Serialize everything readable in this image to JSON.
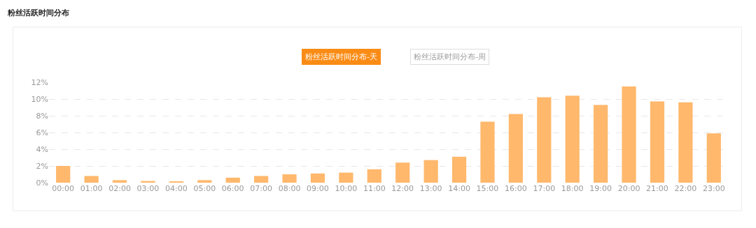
{
  "chart_data": {
    "type": "bar",
    "title": "粉丝活跃时间分布",
    "annotations": [
      "粉丝活跃时间分布-天",
      "粉丝活跃时间分布-周"
    ],
    "categories": [
      "00:00",
      "01:00",
      "02:00",
      "03:00",
      "04:00",
      "05:00",
      "06:00",
      "07:00",
      "08:00",
      "09:00",
      "10:00",
      "11:00",
      "12:00",
      "13:00",
      "14:00",
      "15:00",
      "16:00",
      "17:00",
      "18:00",
      "19:00",
      "20:00",
      "21:00",
      "22:00",
      "23:00"
    ],
    "values": [
      2.0,
      0.8,
      0.3,
      0.2,
      0.1,
      0.3,
      0.6,
      0.8,
      1.0,
      1.1,
      1.2,
      1.6,
      2.4,
      2.7,
      3.1,
      7.3,
      8.2,
      10.2,
      10.4,
      9.3,
      11.5,
      9.7,
      9.6,
      5.9
    ],
    "color": "#ffb86c",
    "ylim": [
      0,
      12
    ],
    "yticks": [
      {
        "value": 0,
        "label": "0%"
      },
      {
        "value": 2,
        "label": "2%"
      },
      {
        "value": 4,
        "label": "4%"
      },
      {
        "value": 6,
        "label": "6%"
      },
      {
        "value": 8,
        "label": "8%"
      },
      {
        "value": 10,
        "label": "10%"
      },
      {
        "value": 12,
        "label": "12%"
      }
    ],
    "grid": "y"
  }
}
